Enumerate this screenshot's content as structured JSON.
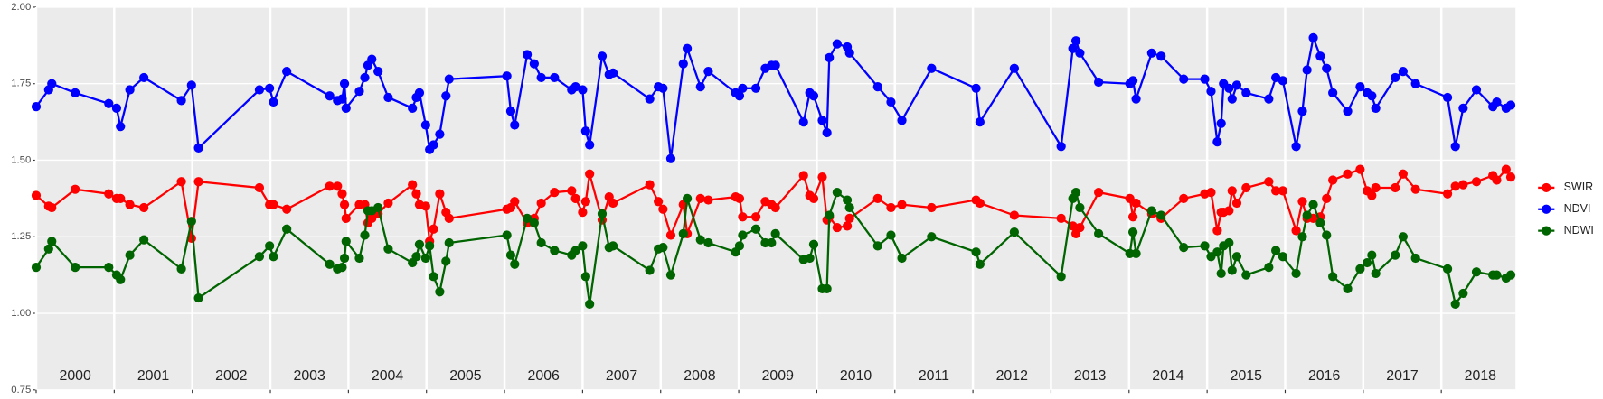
{
  "chart_data": {
    "type": "line",
    "x": [
      2000,
      2000.16,
      2000.2,
      2000.5,
      2000.93,
      2001.03,
      2001.08,
      2001.2,
      2001.38,
      2001.86,
      2001.99,
      2002.08,
      2002.86,
      2002.99,
      2003.04,
      2003.21,
      2003.76,
      2003.86,
      2003.92,
      2003.95,
      2003.97,
      2004.14,
      2004.21,
      2004.25,
      2004.3,
      2004.38,
      2004.51,
      2004.82,
      2004.87,
      2004.91,
      2004.99,
      2005.04,
      2005.09,
      2005.17,
      2005.25,
      2005.29,
      2006.03,
      2006.08,
      2006.13,
      2006.29,
      2006.38,
      2006.47,
      2006.64,
      2006.86,
      2006.91,
      2007,
      2007.04,
      2007.09,
      2007.25,
      2007.34,
      2007.39,
      2007.86,
      2007.97,
      2008.03,
      2008.13,
      2008.29,
      2008.34,
      2008.51,
      2008.61,
      2008.96,
      2009.01,
      2009.05,
      2009.22,
      2009.34,
      2009.42,
      2009.47,
      2009.83,
      2009.91,
      2009.96,
      2010.07,
      2010.13,
      2010.16,
      2010.26,
      2010.39,
      2010.42,
      2010.78,
      2010.95,
      2011.09,
      2011.47,
      2012.04,
      2012.09,
      2012.53,
      2013.13,
      2013.28,
      2013.32,
      2013.37,
      2013.61,
      2014.01,
      2014.05,
      2014.09,
      2014.29,
      2014.41,
      2014.7,
      2014.97,
      2015.05,
      2015.13,
      2015.18,
      2015.21,
      2015.28,
      2015.32,
      2015.38,
      2015.5,
      2015.79,
      2015.88,
      2015.97,
      2016.14,
      2016.22,
      2016.28,
      2016.36,
      2016.45,
      2016.53,
      2016.61,
      2016.8,
      2016.96,
      2017.05,
      2017.11,
      2017.16,
      2017.41,
      2017.51,
      2017.67,
      2018.08,
      2018.18,
      2018.28,
      2018.45,
      2018.66,
      2018.71,
      2018.83,
      2018.89
    ],
    "series": [
      {
        "name": "SWIR",
        "color": "#ff0000",
        "values": [
          1.385,
          1.35,
          1.345,
          1.405,
          1.39,
          1.375,
          1.375,
          1.355,
          1.345,
          1.43,
          1.245,
          1.43,
          1.41,
          1.355,
          1.355,
          1.34,
          1.415,
          1.415,
          1.39,
          1.355,
          1.31,
          1.355,
          1.355,
          1.295,
          1.31,
          1.325,
          1.36,
          1.42,
          1.39,
          1.355,
          1.35,
          1.235,
          1.275,
          1.39,
          1.33,
          1.31,
          1.34,
          1.345,
          1.365,
          1.295,
          1.31,
          1.36,
          1.395,
          1.4,
          1.375,
          1.33,
          1.365,
          1.455,
          1.305,
          1.38,
          1.36,
          1.42,
          1.365,
          1.34,
          1.255,
          1.355,
          1.26,
          1.375,
          1.37,
          1.38,
          1.375,
          1.315,
          1.315,
          1.365,
          1.355,
          1.345,
          1.45,
          1.385,
          1.375,
          1.445,
          1.305,
          1.315,
          1.28,
          1.285,
          1.31,
          1.375,
          1.345,
          1.355,
          1.345,
          1.37,
          1.36,
          1.32,
          1.31,
          1.285,
          1.26,
          1.28,
          1.395,
          1.375,
          1.315,
          1.36,
          1.325,
          1.31,
          1.375,
          1.39,
          1.395,
          1.27,
          1.33,
          1.33,
          1.335,
          1.4,
          1.36,
          1.41,
          1.43,
          1.4,
          1.4,
          1.27,
          1.365,
          1.31,
          1.31,
          1.315,
          1.375,
          1.435,
          1.455,
          1.47,
          1.4,
          1.385,
          1.41,
          1.41,
          1.455,
          1.405,
          1.39,
          1.415,
          1.42,
          1.43,
          1.45,
          1.435,
          1.47,
          1.445
        ]
      },
      {
        "name": "NDVI",
        "color": "#0000ff",
        "values": [
          1.675,
          1.73,
          1.75,
          1.72,
          1.685,
          1.67,
          1.61,
          1.73,
          1.77,
          1.695,
          1.745,
          1.54,
          1.73,
          1.735,
          1.69,
          1.79,
          1.71,
          1.695,
          1.7,
          1.75,
          1.67,
          1.725,
          1.77,
          1.81,
          1.83,
          1.79,
          1.705,
          1.67,
          1.705,
          1.72,
          1.615,
          1.535,
          1.55,
          1.585,
          1.71,
          1.765,
          1.775,
          1.66,
          1.615,
          1.845,
          1.815,
          1.77,
          1.77,
          1.73,
          1.74,
          1.73,
          1.595,
          1.55,
          1.84,
          1.78,
          1.785,
          1.7,
          1.74,
          1.735,
          1.505,
          1.815,
          1.865,
          1.74,
          1.79,
          1.72,
          1.71,
          1.735,
          1.735,
          1.8,
          1.81,
          1.81,
          1.625,
          1.72,
          1.71,
          1.63,
          1.59,
          1.835,
          1.88,
          1.87,
          1.85,
          1.74,
          1.69,
          1.63,
          1.8,
          1.735,
          1.625,
          1.8,
          1.545,
          1.865,
          1.89,
          1.85,
          1.755,
          1.75,
          1.76,
          1.7,
          1.85,
          1.84,
          1.765,
          1.765,
          1.725,
          1.56,
          1.62,
          1.75,
          1.735,
          1.7,
          1.745,
          1.72,
          1.7,
          1.77,
          1.76,
          1.545,
          1.66,
          1.795,
          1.9,
          1.84,
          1.8,
          1.72,
          1.66,
          1.74,
          1.72,
          1.71,
          1.67,
          1.77,
          1.79,
          1.75,
          1.705,
          1.545,
          1.67,
          1.73,
          1.675,
          1.69,
          1.67,
          1.68
        ]
      },
      {
        "name": "NDWI",
        "color": "#006400",
        "values": [
          1.15,
          1.21,
          1.235,
          1.15,
          1.15,
          1.125,
          1.11,
          1.19,
          1.24,
          1.145,
          1.3,
          1.05,
          1.185,
          1.22,
          1.185,
          1.275,
          1.16,
          1.145,
          1.15,
          1.18,
          1.235,
          1.18,
          1.255,
          1.335,
          1.335,
          1.345,
          1.21,
          1.165,
          1.185,
          1.225,
          1.18,
          1.22,
          1.12,
          1.07,
          1.17,
          1.23,
          1.255,
          1.19,
          1.16,
          1.31,
          1.295,
          1.23,
          1.205,
          1.19,
          1.205,
          1.22,
          1.12,
          1.03,
          1.325,
          1.215,
          1.22,
          1.14,
          1.21,
          1.215,
          1.125,
          1.26,
          1.375,
          1.24,
          1.23,
          1.2,
          1.22,
          1.255,
          1.275,
          1.23,
          1.23,
          1.26,
          1.175,
          1.18,
          1.225,
          1.08,
          1.08,
          1.32,
          1.395,
          1.37,
          1.345,
          1.22,
          1.255,
          1.18,
          1.25,
          1.2,
          1.16,
          1.265,
          1.12,
          1.375,
          1.395,
          1.345,
          1.26,
          1.195,
          1.265,
          1.195,
          1.335,
          1.32,
          1.215,
          1.22,
          1.185,
          1.2,
          1.13,
          1.22,
          1.23,
          1.14,
          1.185,
          1.125,
          1.15,
          1.205,
          1.185,
          1.13,
          1.25,
          1.32,
          1.355,
          1.295,
          1.255,
          1.12,
          1.08,
          1.145,
          1.165,
          1.19,
          1.13,
          1.19,
          1.25,
          1.18,
          1.145,
          1.03,
          1.065,
          1.135,
          1.125,
          1.125,
          1.115,
          1.125
        ]
      }
    ],
    "xlim": [
      2000,
      2018.95
    ],
    "xticks": [
      2000,
      2001,
      2002,
      2003,
      2004,
      2005,
      2006,
      2007,
      2008,
      2009,
      2010,
      2011,
      2012,
      2013,
      2014,
      2015,
      2016,
      2017,
      2018
    ],
    "ylim": [
      0.75,
      2.0
    ],
    "yticks": [
      {
        "value": 0.75,
        "label": "0.75"
      },
      {
        "value": 1.0,
        "label": "1.00"
      },
      {
        "value": 1.25,
        "label": "1.25"
      },
      {
        "value": 1.5,
        "label": "1.50"
      },
      {
        "value": 1.75,
        "label": "1.75"
      },
      {
        "value": 2.0,
        "label": "2.00"
      }
    ],
    "grid": true,
    "legend": "right"
  }
}
